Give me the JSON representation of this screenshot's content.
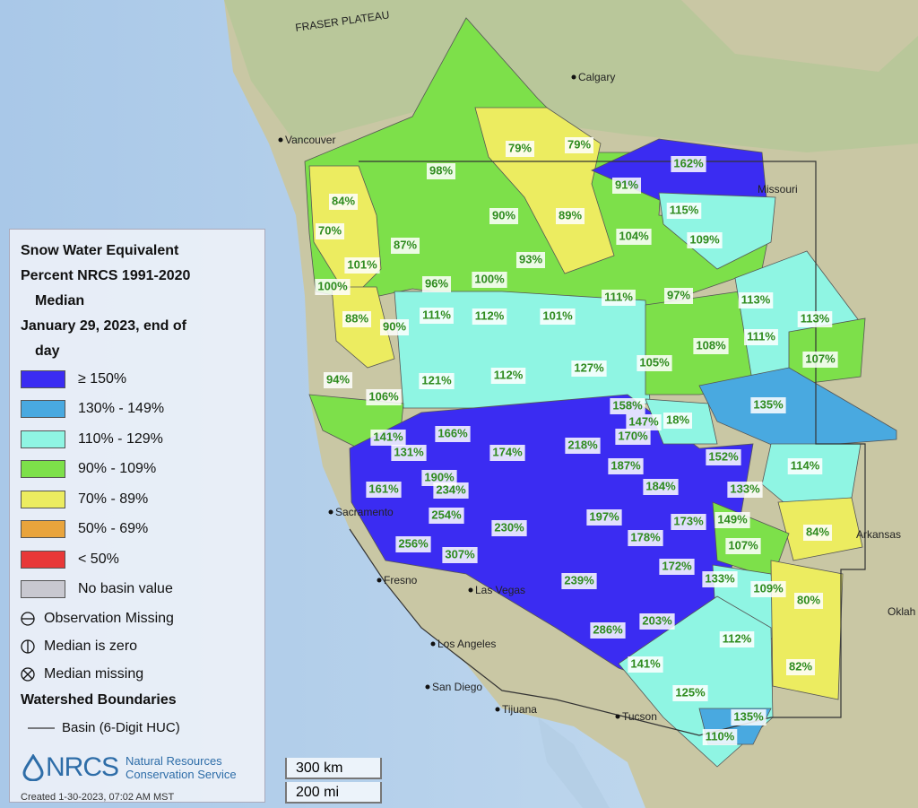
{
  "legend": {
    "title_lines": [
      "Snow Water Equivalent",
      "Percent NRCS 1991-2020",
      "Median",
      "January 29, 2023, end of",
      "day"
    ],
    "classes": [
      {
        "label": "≥ 150%",
        "color": "#3b2cf2"
      },
      {
        "label": "130% - 149%",
        "color": "#49a9e0"
      },
      {
        "label": "110% - 129%",
        "color": "#8ff5e3"
      },
      {
        "label": "90% - 109%",
        "color": "#7de04a"
      },
      {
        "label": "70% - 89%",
        "color": "#ecec60"
      },
      {
        "label": "50% - 69%",
        "color": "#e9a43c"
      },
      {
        "label": "< 50%",
        "color": "#e83838"
      },
      {
        "label": "No basin value",
        "color": "#c8c8d0"
      }
    ],
    "symbols": [
      "Observation Missing",
      "Median is zero",
      "Median missing"
    ],
    "boundaries_title": "Watershed Boundaries",
    "boundary_item": "Basin (6-Digit HUC)"
  },
  "logo": {
    "acronym": "NRCS",
    "name_lines": [
      "Natural Resources",
      "Conservation Service"
    ]
  },
  "credit": "Created 1-30-2023, 07:02 AM MST",
  "scale": [
    "300 km",
    "200 mi"
  ],
  "places": [
    "Calgary",
    "Vancouver",
    "FRASER PLATEAU",
    "Sacramento",
    "Fresno",
    "Las Vegas",
    "Los Angeles",
    "San Diego",
    "Tijuana",
    "Tucson",
    "Missouri",
    "Arkansas",
    "Oklah"
  ],
  "basins": [
    "162%",
    "79%",
    "79%",
    "98%",
    "91%",
    "84%",
    "90%",
    "89%",
    "115%",
    "70%",
    "87%",
    "104%",
    "109%",
    "93%",
    "101%",
    "96%",
    "100%",
    "100%",
    "111%",
    "97%",
    "113%",
    "113%",
    "111%",
    "112%",
    "101%",
    "88%",
    "90%",
    "108%",
    "111%",
    "107%",
    "105%",
    "94%",
    "121%",
    "112%",
    "127%",
    "106%",
    "135%",
    "158%",
    "147%",
    "18%",
    "170%",
    "141%",
    "166%",
    "131%",
    "218%",
    "174%",
    "152%",
    "114%",
    "187%",
    "190%",
    "161%",
    "234%",
    "184%",
    "133%",
    "254%",
    "230%",
    "197%",
    "173%",
    "149%",
    "84%",
    "178%",
    "107%",
    "256%",
    "307%",
    "172%",
    "133%",
    "239%",
    "109%",
    "80%",
    "286%",
    "203%",
    "112%",
    "141%",
    "82%",
    "125%",
    "135%",
    "110%"
  ]
}
